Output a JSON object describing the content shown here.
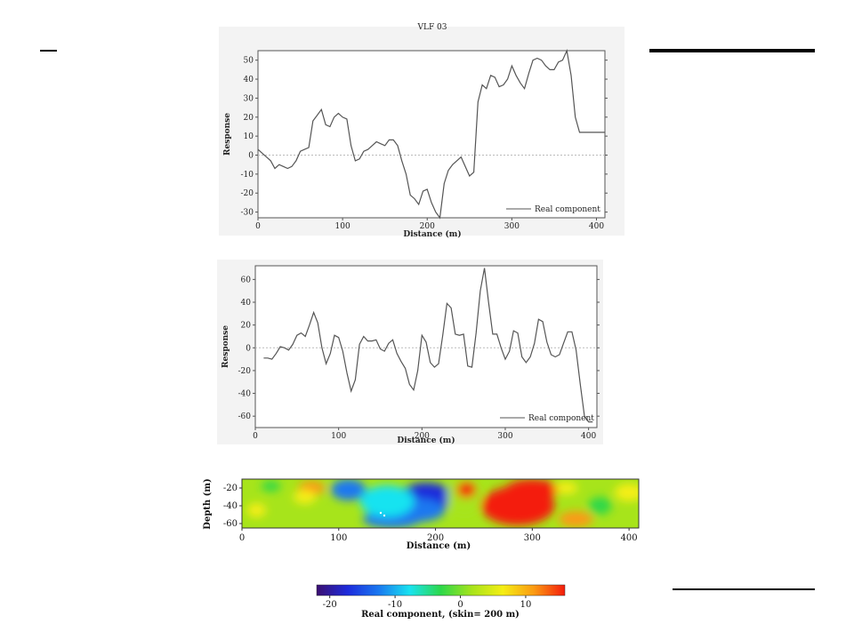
{
  "chart_data": [
    {
      "type": "line",
      "title": "VLF  03",
      "xlabel": "Distance (m)",
      "ylabel": "Response",
      "xlim": [
        0,
        410
      ],
      "ylim": [
        -33,
        55
      ],
      "x_ticks": [
        0,
        100,
        200,
        300,
        400
      ],
      "y_ticks": [
        -30,
        -20,
        -10,
        0,
        10,
        20,
        30,
        40,
        50
      ],
      "grid": false,
      "zero_line": true,
      "legend_position": "bottom-right",
      "series": [
        {
          "name": "Real component",
          "x": [
            0,
            5,
            10,
            15,
            20,
            25,
            30,
            35,
            40,
            45,
            50,
            55,
            60,
            65,
            70,
            75,
            80,
            85,
            90,
            95,
            100,
            105,
            110,
            115,
            120,
            125,
            130,
            135,
            140,
            145,
            150,
            155,
            160,
            165,
            170,
            175,
            180,
            185,
            190,
            195,
            200,
            205,
            210,
            215,
            220,
            225,
            230,
            235,
            240,
            245,
            250,
            255,
            260,
            265,
            270,
            275,
            280,
            285,
            290,
            295,
            300,
            305,
            310,
            315,
            320,
            325,
            330,
            335,
            340,
            345,
            350,
            355,
            360,
            365,
            370,
            375,
            380,
            385,
            390,
            395,
            400,
            405,
            410
          ],
          "y": [
            3,
            1,
            -1,
            -3,
            -7,
            -5,
            -6,
            -7,
            -6,
            -3,
            2,
            3,
            4,
            18,
            21,
            24,
            16,
            15,
            20,
            22,
            20,
            19,
            5,
            -3,
            -2,
            2,
            3,
            5,
            7,
            6,
            5,
            8,
            8,
            5,
            -3,
            -10,
            -21,
            -23,
            -26,
            -19,
            -18,
            -25,
            -30,
            -33,
            -15,
            -8,
            -5,
            -3,
            -1,
            -6,
            -11,
            -9,
            28,
            37,
            35,
            42,
            41,
            36,
            37,
            40,
            47,
            42,
            38,
            35,
            43,
            50,
            51,
            50,
            47,
            45,
            45,
            49,
            50,
            55,
            42,
            20,
            12,
            12,
            12,
            12,
            12,
            12,
            12
          ]
        }
      ]
    },
    {
      "type": "line",
      "title": "",
      "xlabel": "Distance (m)",
      "ylabel": "Response",
      "xlim": [
        0,
        410
      ],
      "ylim": [
        -70,
        72
      ],
      "x_ticks": [
        0,
        100,
        200,
        300,
        400
      ],
      "y_ticks": [
        -60,
        -40,
        -20,
        0,
        20,
        40,
        60
      ],
      "grid": false,
      "zero_line": true,
      "legend_position": "bottom-right",
      "series": [
        {
          "name": "Real component",
          "x": [
            10,
            15,
            20,
            25,
            30,
            35,
            40,
            45,
            50,
            55,
            60,
            65,
            70,
            75,
            80,
            85,
            90,
            95,
            100,
            105,
            110,
            115,
            120,
            125,
            130,
            135,
            140,
            145,
            150,
            155,
            160,
            165,
            170,
            175,
            180,
            185,
            190,
            195,
            200,
            205,
            210,
            215,
            220,
            225,
            230,
            235,
            240,
            245,
            250,
            255,
            260,
            265,
            270,
            275,
            280,
            285,
            290,
            295,
            300,
            305,
            310,
            315,
            320,
            325,
            330,
            335,
            340,
            345,
            350,
            355,
            360,
            365,
            370,
            375,
            380,
            385,
            390,
            395,
            400,
            405
          ],
          "y": [
            -9,
            -9,
            -10,
            -5,
            1,
            0,
            -2,
            3,
            11,
            13,
            10,
            20,
            31,
            22,
            0,
            -14,
            -5,
            11,
            9,
            -3,
            -22,
            -38,
            -28,
            3,
            10,
            6,
            6,
            7,
            -1,
            -3,
            4,
            7,
            -5,
            -12,
            -18,
            -32,
            -37,
            -20,
            11,
            5,
            -13,
            -17,
            -14,
            11,
            39,
            35,
            12,
            11,
            12,
            -16,
            -17,
            13,
            50,
            70,
            40,
            12,
            12,
            0,
            -10,
            -3,
            15,
            13,
            -8,
            -13,
            -8,
            4,
            25,
            23,
            5,
            -6,
            -8,
            -6,
            4,
            14,
            14,
            -2,
            -32,
            -60,
            -65,
            -65
          ]
        }
      ]
    },
    {
      "type": "heatmap",
      "title": "",
      "xlabel": "Distance (m)",
      "ylabel": "Depth (m)",
      "xlim": [
        0,
        410
      ],
      "ylim": [
        -65,
        -10
      ],
      "x_ticks": [
        0,
        100,
        200,
        300,
        400
      ],
      "y_ticks": [
        -20,
        -40,
        -60
      ],
      "colorbar": {
        "label": "Real component,  (skin=  200 m)",
        "ticks": [
          -20,
          -10,
          0,
          10
        ],
        "range": [
          -22,
          16
        ],
        "colors": [
          "#3b0f70",
          "#1d2bdc",
          "#1a78f0",
          "#19e3f0",
          "#2dd84a",
          "#a7e41b",
          "#f5ee14",
          "#fb9a12",
          "#f41c0c"
        ]
      },
      "background_value": 0,
      "anomalies": [
        {
          "cx": 190,
          "cy": -30,
          "rx": 28,
          "ry": 16,
          "value": -16
        },
        {
          "cx": 175,
          "cy": -45,
          "rx": 35,
          "ry": 14,
          "value": -12
        },
        {
          "cx": 155,
          "cy": -55,
          "rx": 30,
          "ry": 10,
          "value": -14
        },
        {
          "cx": 110,
          "cy": -22,
          "rx": 18,
          "ry": 12,
          "value": -13
        },
        {
          "cx": 150,
          "cy": -35,
          "rx": 28,
          "ry": 18,
          "value": -6
        },
        {
          "cx": 230,
          "cy": -30,
          "rx": 18,
          "ry": 20,
          "value": 4
        },
        {
          "cx": 285,
          "cy": -40,
          "rx": 38,
          "ry": 22,
          "value": 15
        },
        {
          "cx": 300,
          "cy": -22,
          "rx": 28,
          "ry": 12,
          "value": 14
        },
        {
          "cx": 232,
          "cy": -22,
          "rx": 10,
          "ry": 9,
          "value": 14
        },
        {
          "cx": 72,
          "cy": -20,
          "rx": 14,
          "ry": 8,
          "value": 12
        },
        {
          "cx": 65,
          "cy": -30,
          "rx": 12,
          "ry": 8,
          "value": 8
        },
        {
          "cx": 345,
          "cy": -55,
          "rx": 18,
          "ry": 9,
          "value": 10
        },
        {
          "cx": 335,
          "cy": -20,
          "rx": 12,
          "ry": 7,
          "value": 7
        },
        {
          "cx": 15,
          "cy": -45,
          "rx": 10,
          "ry": 8,
          "value": 7
        },
        {
          "cx": 30,
          "cy": -18,
          "rx": 10,
          "ry": 6,
          "value": -5
        },
        {
          "cx": 400,
          "cy": -25,
          "rx": 15,
          "ry": 10,
          "value": 6
        },
        {
          "cx": 370,
          "cy": -40,
          "rx": 12,
          "ry": 10,
          "value": -4
        }
      ]
    }
  ]
}
